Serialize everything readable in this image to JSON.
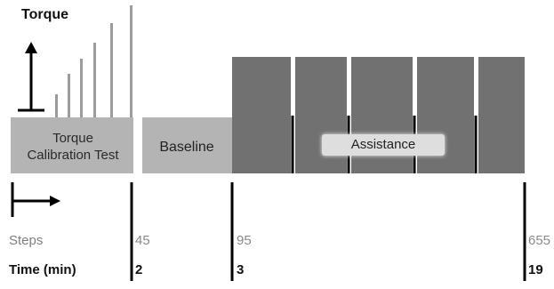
{
  "torque_label": "Torque",
  "phases": {
    "calibration": {
      "line1": "Torque",
      "line2": "Calibration Test"
    },
    "baseline": "Baseline",
    "assistance": "Assistance"
  },
  "timeline": {
    "steps_label": "Steps",
    "time_label": "Time (min)",
    "markers": [
      {
        "steps": "45",
        "time": "2"
      },
      {
        "steps": "95",
        "time": "3"
      },
      {
        "steps": "655",
        "time": "19"
      }
    ]
  },
  "colors": {
    "light_block": "#b4b4b4",
    "dark_block": "#717171",
    "calibration_bars": "#9b9b9b",
    "assistance_label_bg": "#dedede",
    "lines": "#000000"
  }
}
